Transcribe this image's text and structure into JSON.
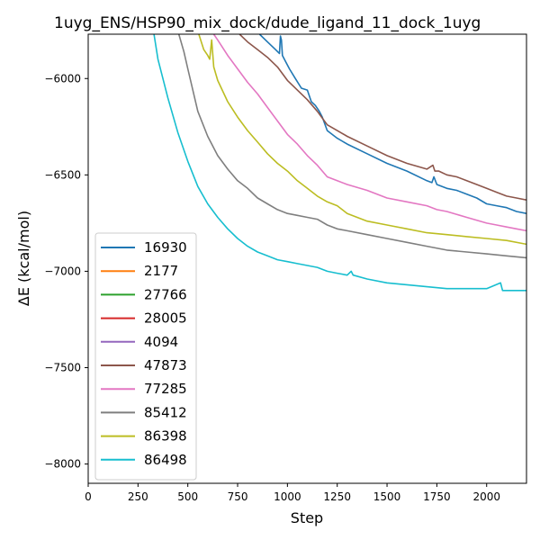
{
  "chart_data": {
    "type": "line",
    "title": "1uyg_ENS/HSP90_mix_dock/dude_ligand_11_dock_1uyg",
    "xlabel": "Step",
    "ylabel": "ΔE (kcal/mol)",
    "xlim": [
      0,
      2200
    ],
    "ylim": [
      -8100,
      -5770
    ],
    "xticks": [
      0,
      250,
      500,
      750,
      1000,
      1250,
      1500,
      1750,
      2000
    ],
    "yticks": [
      -8000,
      -7500,
      -7000,
      -6500,
      -6000
    ],
    "grid": false,
    "legend_position": "lower-left",
    "series": [
      {
        "name": "16930",
        "color": "#1f77b4",
        "x": [
          860,
          900,
          940,
          960,
          965,
          970,
          975,
          990,
          1010,
          1040,
          1070,
          1100,
          1120,
          1140,
          1160,
          1175,
          1200,
          1250,
          1300,
          1400,
          1500,
          1600,
          1700,
          1725,
          1735,
          1750,
          1800,
          1850,
          1900,
          1950,
          2000,
          2050,
          2100,
          2150,
          2200
        ],
        "y": [
          -5770,
          -5810,
          -5850,
          -5870,
          -5780,
          -5800,
          -5880,
          -5910,
          -5950,
          -6000,
          -6050,
          -6060,
          -6120,
          -6140,
          -6170,
          -6200,
          -6270,
          -6310,
          -6340,
          -6390,
          -6440,
          -6480,
          -6530,
          -6540,
          -6510,
          -6550,
          -6570,
          -6580,
          -6600,
          -6620,
          -6650,
          -6660,
          -6670,
          -6690,
          -6700
        ]
      },
      {
        "name": "2177",
        "color": "#ff7f0e",
        "x": [],
        "y": []
      },
      {
        "name": "27766",
        "color": "#2ca02c",
        "x": [],
        "y": []
      },
      {
        "name": "28005",
        "color": "#d62728",
        "x": [],
        "y": []
      },
      {
        "name": "4094",
        "color": "#9467bd",
        "x": [],
        "y": []
      },
      {
        "name": "47873",
        "color": "#8c564b",
        "x": [
          760,
          800,
          850,
          900,
          950,
          1000,
          1050,
          1100,
          1150,
          1200,
          1250,
          1300,
          1400,
          1500,
          1600,
          1700,
          1730,
          1740,
          1760,
          1800,
          1850,
          1900,
          1950,
          2000,
          2050,
          2100,
          2150,
          2200
        ],
        "y": [
          -5770,
          -5810,
          -5850,
          -5890,
          -5940,
          -6010,
          -6060,
          -6110,
          -6170,
          -6240,
          -6270,
          -6300,
          -6350,
          -6400,
          -6440,
          -6470,
          -6450,
          -6480,
          -6480,
          -6500,
          -6510,
          -6530,
          -6550,
          -6570,
          -6590,
          -6610,
          -6620,
          -6630
        ]
      },
      {
        "name": "77285",
        "color": "#e377c2",
        "x": [
          630,
          650,
          700,
          750,
          800,
          850,
          900,
          950,
          1000,
          1050,
          1100,
          1150,
          1200,
          1250,
          1300,
          1400,
          1500,
          1600,
          1700,
          1750,
          1800,
          1900,
          2000,
          2050,
          2100,
          2150,
          2200
        ],
        "y": [
          -5770,
          -5800,
          -5880,
          -5950,
          -6020,
          -6080,
          -6150,
          -6220,
          -6290,
          -6340,
          -6400,
          -6450,
          -6510,
          -6530,
          -6550,
          -6580,
          -6620,
          -6640,
          -6660,
          -6680,
          -6690,
          -6720,
          -6750,
          -6760,
          -6770,
          -6780,
          -6790
        ]
      },
      {
        "name": "85412",
        "color": "#7f7f7f",
        "x": [
          455,
          480,
          500,
          550,
          600,
          650,
          700,
          750,
          800,
          850,
          900,
          950,
          1000,
          1050,
          1100,
          1150,
          1200,
          1250,
          1300,
          1400,
          1500,
          1600,
          1700,
          1800,
          1900,
          2000,
          2100,
          2200
        ],
        "y": [
          -5770,
          -5860,
          -5950,
          -6170,
          -6300,
          -6400,
          -6470,
          -6530,
          -6570,
          -6620,
          -6650,
          -6680,
          -6700,
          -6710,
          -6720,
          -6730,
          -6760,
          -6780,
          -6790,
          -6810,
          -6830,
          -6850,
          -6870,
          -6890,
          -6900,
          -6910,
          -6920,
          -6930
        ]
      },
      {
        "name": "86398",
        "color": "#bcbd22",
        "x": [
          555,
          580,
          600,
          610,
          620,
          630,
          650,
          700,
          750,
          800,
          850,
          900,
          950,
          1000,
          1050,
          1100,
          1150,
          1200,
          1250,
          1300,
          1400,
          1500,
          1600,
          1700,
          1800,
          1900,
          2000,
          2100,
          2200
        ],
        "y": [
          -5770,
          -5850,
          -5880,
          -5900,
          -5800,
          -5940,
          -6010,
          -6120,
          -6200,
          -6270,
          -6330,
          -6390,
          -6440,
          -6480,
          -6530,
          -6570,
          -6610,
          -6640,
          -6660,
          -6700,
          -6740,
          -6760,
          -6780,
          -6800,
          -6810,
          -6820,
          -6830,
          -6840,
          -6860
        ]
      },
      {
        "name": "86498",
        "color": "#17becf",
        "x": [
          330,
          350,
          400,
          450,
          500,
          550,
          600,
          650,
          700,
          750,
          800,
          850,
          900,
          950,
          1000,
          1050,
          1100,
          1150,
          1200,
          1250,
          1300,
          1320,
          1330,
          1400,
          1500,
          1600,
          1700,
          1800,
          1900,
          2000,
          2070,
          2080,
          2100,
          2150,
          2200
        ],
        "y": [
          -5770,
          -5900,
          -6100,
          -6280,
          -6430,
          -6560,
          -6650,
          -6720,
          -6780,
          -6830,
          -6870,
          -6900,
          -6920,
          -6940,
          -6950,
          -6960,
          -6970,
          -6980,
          -7000,
          -7010,
          -7020,
          -7000,
          -7020,
          -7040,
          -7060,
          -7070,
          -7080,
          -7090,
          -7090,
          -7090,
          -7060,
          -7100,
          -7100,
          -7100,
          -7100
        ]
      }
    ]
  }
}
